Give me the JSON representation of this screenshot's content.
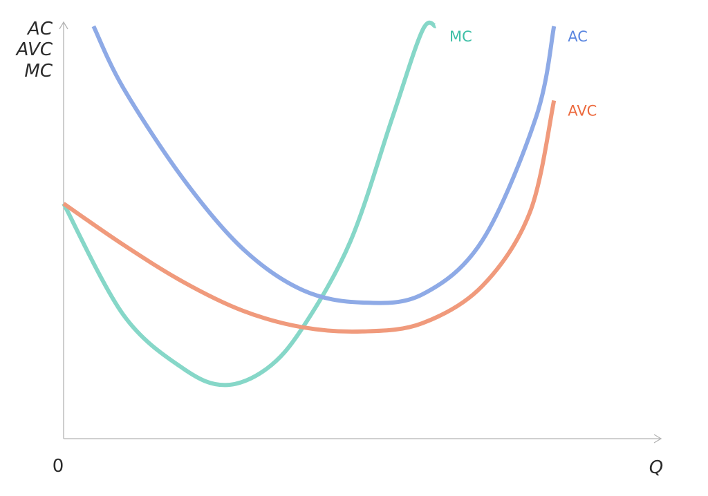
{
  "chart_data": {
    "type": "line",
    "title": "",
    "xlabel": "Q",
    "ylabel_lines": [
      "AC",
      "AVC",
      "MC"
    ],
    "origin_label": "0",
    "xlim": [
      0,
      100
    ],
    "ylim": [
      0,
      100
    ],
    "grid": false,
    "legend": "inline labels at curve ends",
    "series": [
      {
        "name": "MC",
        "color": "#86d7c8",
        "label_color": "#3cbfa6",
        "x": [
          0,
          10,
          20,
          27,
          34,
          40,
          48,
          55,
          60,
          62.2
        ],
        "y": [
          57,
          30,
          17,
          13,
          17,
          27,
          48,
          78,
          99,
          100
        ]
      },
      {
        "name": "AC",
        "color": "#8eaae6",
        "label_color": "#5a86e0",
        "x": [
          5,
          10,
          20,
          30,
          40,
          50,
          60,
          70,
          79,
          82
        ],
        "y": [
          100,
          85,
          63,
          46,
          36,
          33,
          35,
          48,
          78,
          100
        ]
      },
      {
        "name": "AVC",
        "color": "#f09a7c",
        "label_color": "#ec6a3e",
        "x": [
          0,
          10,
          20,
          30,
          40,
          50,
          60,
          70,
          78,
          82
        ],
        "y": [
          57,
          47,
          38,
          31,
          27,
          26,
          28,
          37,
          55,
          82
        ]
      }
    ]
  }
}
